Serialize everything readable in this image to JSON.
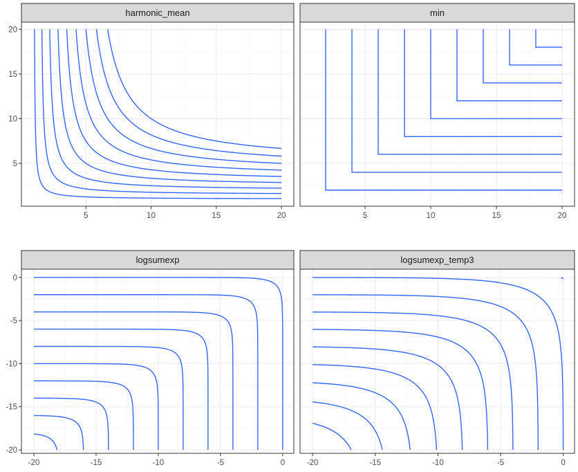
{
  "chart_data": [
    {
      "type": "line",
      "panel": "harmonic_mean",
      "title": "harmonic_mean",
      "function": "harmonic_mean",
      "xlim": [
        1,
        20
      ],
      "ylim": [
        1,
        20
      ],
      "x_ticks": [
        5,
        10,
        15,
        20
      ],
      "y_ticks": [
        5,
        10,
        15,
        20
      ],
      "levels": [
        1,
        2,
        3,
        4,
        5,
        6,
        7,
        8,
        9,
        10
      ],
      "series_color": "#3366ff"
    },
    {
      "type": "line",
      "panel": "min",
      "title": "min",
      "function": "min",
      "xlim": [
        1,
        20
      ],
      "ylim": [
        1,
        20
      ],
      "x_ticks": [
        5,
        10,
        15,
        20
      ],
      "y_ticks": [],
      "levels": [
        2,
        4,
        6,
        8,
        10,
        12,
        14,
        16,
        18
      ],
      "series_color": "#3366ff"
    },
    {
      "type": "line",
      "panel": "logsumexp",
      "title": "logsumexp",
      "function": "logsumexp",
      "xlim": [
        -20,
        0
      ],
      "ylim": [
        -20,
        0
      ],
      "x_ticks": [
        -20,
        -15,
        -10,
        -5,
        0
      ],
      "y_ticks": [
        -20,
        -15,
        -10,
        -5,
        0
      ],
      "levels": [
        -18,
        -16,
        -14,
        -12,
        -10,
        -8,
        -6,
        -4,
        -2,
        0
      ],
      "series_color": "#3366ff"
    },
    {
      "type": "line",
      "panel": "logsumexp_temp3",
      "title": "logsumexp_temp3",
      "function": "logsumexp_temp3",
      "xlim": [
        -20,
        0
      ],
      "ylim": [
        -20,
        0
      ],
      "x_ticks": [
        -20,
        -15,
        -10,
        -5,
        0
      ],
      "y_ticks": [],
      "levels": [
        -18,
        -16,
        -14,
        -12,
        -10,
        -8,
        -6,
        -4,
        -2,
        0,
        2
      ],
      "series_color": "#3366ff"
    }
  ]
}
